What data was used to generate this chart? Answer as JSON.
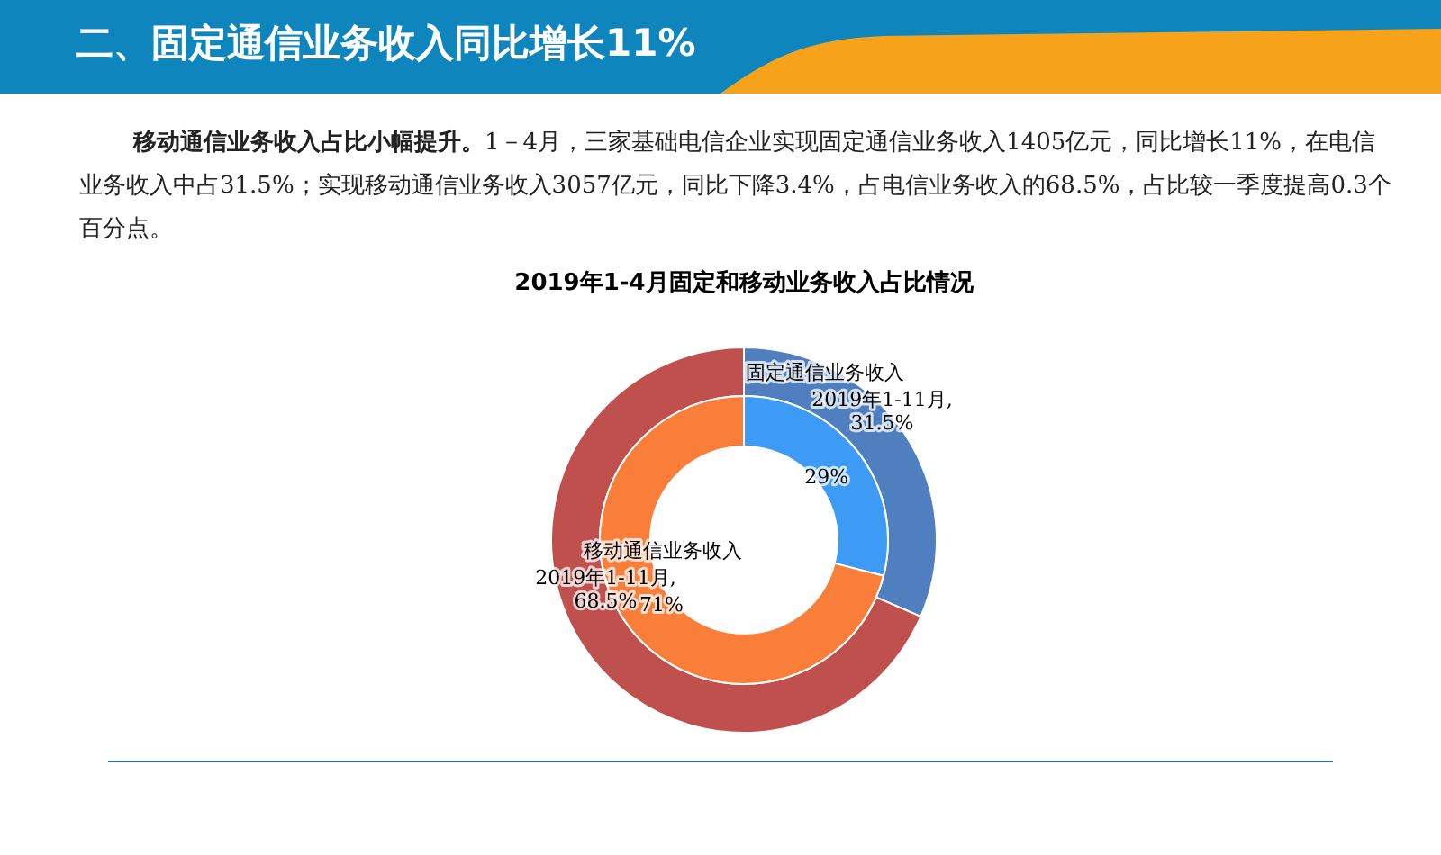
{
  "chart_data": {
    "type": "donut",
    "title": "2019年1-4月固定和移动业务收入占比情况",
    "categories": [
      "固定通信业务收入",
      "移动通信业务收入"
    ],
    "series": [
      {
        "name": "2019年1-11月,",
        "values": [
          31.5,
          68.5
        ],
        "colors": [
          "#4f7fbf",
          "#c0504d"
        ],
        "value_labels": [
          "31.5%",
          "68.5%"
        ]
      },
      {
        "values": [
          29,
          71
        ],
        "colors": [
          "#3d9bf5",
          "#f87e3a"
        ],
        "value_labels": [
          "29%",
          "71%"
        ]
      }
    ],
    "annotations": [
      "二、固定通信业务收入同比增长11%",
      "移动通信业务收入占比小幅提升。",
      "1－4月，三家基础电信企业实现固定通信业务收入1405亿元，同比增长11%，在电信业务收入中占31.5%；实现移动通信业务收入3057亿元，同比下降3.4%，占电信业务收入的68.5%，占比较一季度提高0.3个百分点。"
    ],
    "legend": false
  }
}
